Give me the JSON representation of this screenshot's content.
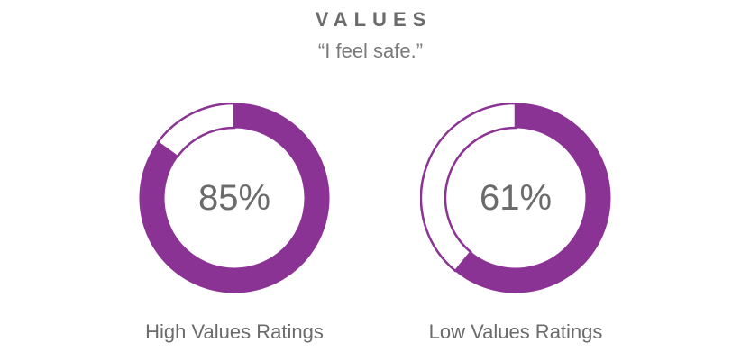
{
  "chart_data": {
    "type": "donut",
    "title": "VALUES",
    "subtitle": "“I feel safe.”",
    "color": "#8b3394",
    "series": [
      {
        "name": "High Values Ratings",
        "value": 85,
        "display": "85%"
      },
      {
        "name": "Low Values Ratings",
        "value": 61,
        "display": "61%"
      }
    ]
  }
}
